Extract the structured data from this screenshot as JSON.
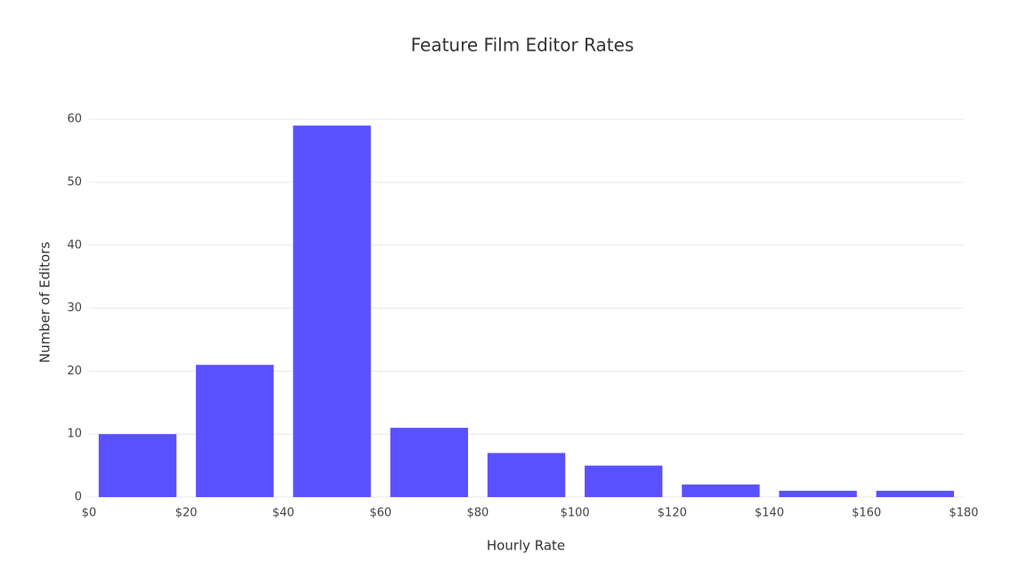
{
  "chart_data": {
    "type": "histogram",
    "title": "Feature Film Editor Rates",
    "x_label": "Hourly Rate",
    "y_label": "Number of Editors",
    "bins": [
      0,
      20,
      40,
      60,
      80,
      100,
      120,
      140,
      160,
      180
    ],
    "values": [
      10,
      21,
      59,
      11,
      7,
      5,
      2,
      1,
      1
    ],
    "color": "#5951ff",
    "xlim": [
      0,
      180
    ],
    "xticks": [
      {
        "value": 0,
        "label": "$0"
      },
      {
        "value": 20,
        "label": "$20"
      },
      {
        "value": 40,
        "label": "$40"
      },
      {
        "value": 60,
        "label": "$60"
      },
      {
        "value": 80,
        "label": "$80"
      },
      {
        "value": 100,
        "label": "$100"
      },
      {
        "value": 120,
        "label": "$120"
      },
      {
        "value": 140,
        "label": "$140"
      },
      {
        "value": 160,
        "label": "$160"
      },
      {
        "value": 180,
        "label": "$180"
      }
    ],
    "ylim": [
      0,
      62
    ],
    "yticks": [
      0,
      10,
      20,
      30,
      40,
      50,
      60
    ],
    "grid": true
  }
}
